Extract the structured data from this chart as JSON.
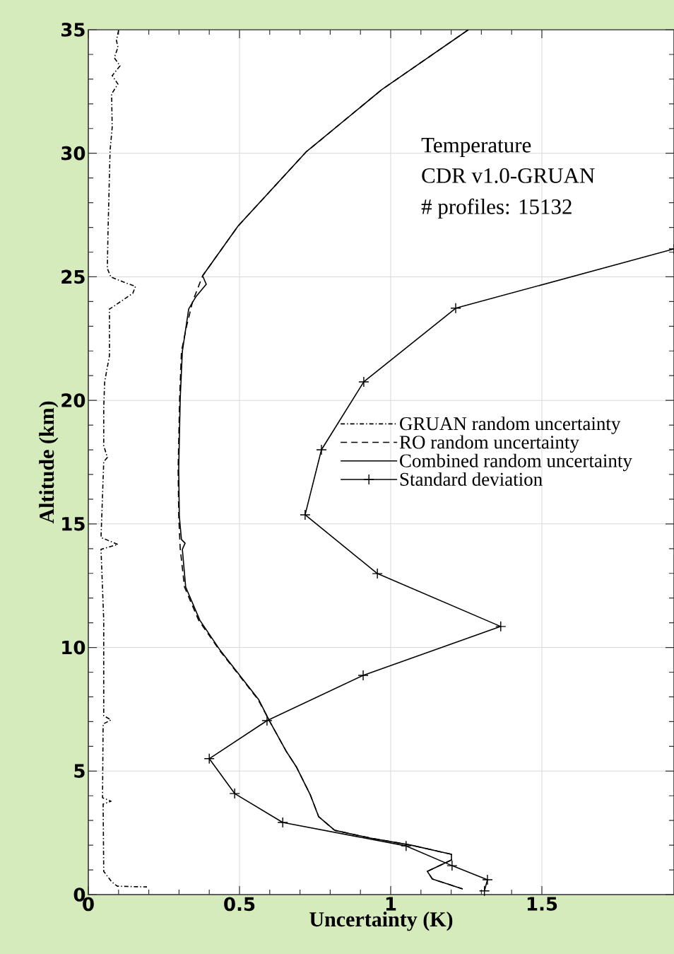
{
  "chart_data": {
    "type": "line",
    "xlabel": "Uncertainty (K)",
    "ylabel": "Altitude (km)",
    "annotations": [
      "Temperature",
      "CDR v1.0-GRUAN",
      "# profiles: 15132"
    ],
    "xlim": [
      0,
      1.937
    ],
    "ylim": [
      0,
      35
    ],
    "xticks": [
      0,
      0.5,
      1,
      1.5
    ],
    "yticks": [
      0,
      5,
      10,
      15,
      20,
      25,
      30,
      35
    ],
    "grid": true,
    "legend": "right",
    "series": [
      {
        "name": "GRUAN random uncertainty",
        "color": "#000000",
        "line_style": "dashdot",
        "marker": "none",
        "x": [
          0.1,
          0.093,
          0.098,
          0.086,
          0.105,
          0.079,
          0.098,
          0.077,
          0.079,
          0.072,
          0.065,
          0.063,
          0.075,
          0.112,
          0.156,
          0.147,
          0.077,
          0.07,
          0.07,
          0.054,
          0.051,
          0.051,
          0.063,
          0.051,
          0.042,
          0.098,
          0.042,
          0.051,
          0.051,
          0.075,
          0.049,
          0.047,
          0.075,
          0.049,
          0.051,
          0.077,
          0.096,
          0.194
        ],
        "values": [
          34.97,
          34.57,
          34.29,
          33.86,
          33.54,
          33.14,
          32.8,
          32.4,
          31.05,
          30.11,
          26.76,
          25.33,
          24.99,
          24.81,
          24.61,
          24.33,
          23.75,
          23.7,
          21.81,
          20.75,
          19.69,
          18.17,
          17.69,
          17.52,
          14.45,
          14.17,
          13.97,
          11.1,
          7.24,
          7.07,
          6.9,
          3.92,
          3.78,
          3.66,
          0.94,
          0.52,
          0.34,
          0.31
        ]
      },
      {
        "name": "RO random uncertainty",
        "color": "#000000",
        "line_style": "dashed",
        "marker": "none",
        "x": [
          1.257,
          0.97,
          0.72,
          0.495,
          0.378,
          0.345,
          0.325,
          0.308,
          0.302,
          0.297,
          0.299,
          0.304,
          0.318,
          0.365,
          0.435,
          0.561,
          0.6,
          0.654,
          0.689,
          0.734,
          0.762,
          0.815,
          0.932,
          1.068,
          1.201,
          1.201,
          1.121,
          1.138,
          1.238
        ],
        "values": [
          35,
          32.57,
          30.05,
          27.05,
          25.04,
          24.0,
          23.0,
          21.98,
          20.09,
          17.23,
          15.31,
          14.0,
          12.45,
          11.1,
          9.87,
          7.9,
          7.01,
          5.81,
          5.15,
          4.04,
          3.15,
          2.6,
          2.29,
          2.0,
          1.63,
          1.4,
          0.94,
          0.63,
          0.23
        ]
      },
      {
        "name": "Combined random uncertainty",
        "color": "#000000",
        "line_style": "solid",
        "marker": "none",
        "x": [
          1.257,
          0.97,
          0.72,
          0.495,
          0.378,
          0.39,
          0.355,
          0.332,
          0.311,
          0.304,
          0.299,
          0.301,
          0.308,
          0.32,
          0.311,
          0.322,
          0.369,
          0.437,
          0.563,
          0.6,
          0.654,
          0.689,
          0.734,
          0.762,
          0.815,
          0.932,
          1.068,
          1.201,
          1.201,
          1.121,
          1.138,
          1.238
        ],
        "values": [
          35,
          32.57,
          30.05,
          27.05,
          25.04,
          24.7,
          24.18,
          23.7,
          21.98,
          20.09,
          17.23,
          15.31,
          14.37,
          14.22,
          13.97,
          12.45,
          11.1,
          9.87,
          7.9,
          7.01,
          5.81,
          5.15,
          4.04,
          3.15,
          2.6,
          2.29,
          2.0,
          1.63,
          1.4,
          0.94,
          0.63,
          0.23
        ]
      },
      {
        "name": "Standard deviation",
        "color": "#000000",
        "line_style": "solid",
        "marker": "cross",
        "x": [
          1.937,
          1.215,
          0.911,
          0.771,
          0.717,
          0.956,
          1.364,
          0.909,
          0.591,
          0.4,
          0.484,
          0.643,
          1.051,
          1.203,
          1.32,
          1.31
        ],
        "values": [
          26.13,
          23.73,
          20.75,
          18.0,
          15.37,
          12.99,
          10.85,
          8.87,
          7.04,
          5.5,
          4.09,
          2.92,
          1.97,
          1.17,
          0.6,
          0.15
        ]
      }
    ]
  }
}
